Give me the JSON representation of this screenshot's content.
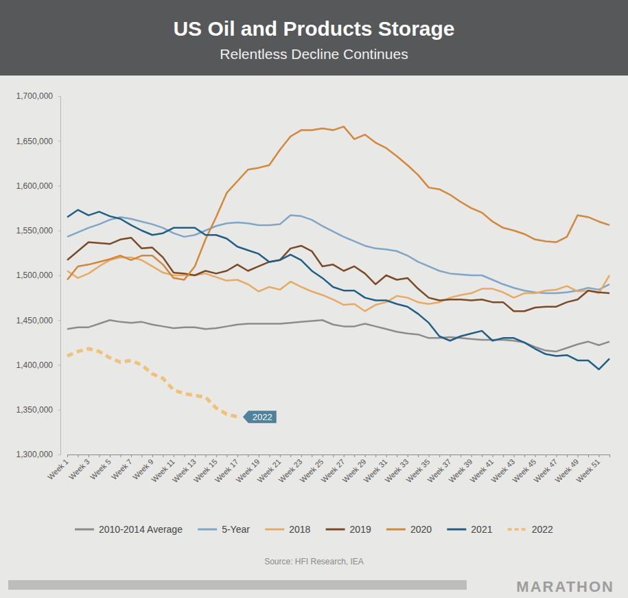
{
  "chart_data": {
    "type": "line",
    "title": "US Oil and Products Storage",
    "subtitle": "Relentless Decline Continues",
    "source": "Source: HFI Research, IEA",
    "footer": "MARATHON",
    "annotations": [
      "2022"
    ],
    "categories": [
      "Week 1",
      null,
      "Week 3",
      null,
      "Week 5",
      null,
      "Week 7",
      null,
      "Week 9",
      null,
      "Week 11",
      null,
      "Week 13",
      null,
      "Week 15",
      null,
      "Week 17",
      null,
      "Week 19",
      null,
      "Week 21",
      null,
      "Week 23",
      null,
      "Week 25",
      null,
      "Week 27",
      null,
      "Week 29",
      null,
      "Week 31",
      null,
      "Week 33",
      null,
      "Week 35",
      null,
      "Week 37",
      null,
      "Week 39",
      null,
      "Week 41",
      null,
      "Week 43",
      null,
      "Week 45",
      null,
      "Week 47",
      null,
      "Week 49",
      null,
      "Week 51",
      null
    ],
    "ylim": [
      1300000,
      1700000
    ],
    "yticks": [
      {
        "value": 1300000,
        "label": "1,300,000"
      },
      {
        "value": 1350000,
        "label": "1,350,000"
      },
      {
        "value": 1400000,
        "label": "1,400,000"
      },
      {
        "value": 1450000,
        "label": "1,450,000"
      },
      {
        "value": 1500000,
        "label": "1,500,000"
      },
      {
        "value": 1550000,
        "label": "1,550,000"
      },
      {
        "value": 1600000,
        "label": "1,600,000"
      },
      {
        "value": 1650000,
        "label": "1,650,000"
      },
      {
        "value": 1700000,
        "label": "1,700,000"
      }
    ],
    "grid": false,
    "legend": "bottom",
    "series": [
      {
        "name": "2010-2014 Average",
        "color": "#8c8c8c",
        "values": [
          1440000,
          1442000,
          1442000,
          1446000,
          1450000,
          1448000,
          1447000,
          1448000,
          1445000,
          1443000,
          1441000,
          1442000,
          1442000,
          1440000,
          1441000,
          1443000,
          1445000,
          1446000,
          1446000,
          1446000,
          1446000,
          1447000,
          1448000,
          1449000,
          1450000,
          1445000,
          1443000,
          1443000,
          1446000,
          1443000,
          1440000,
          1437000,
          1435000,
          1434000,
          1430000,
          1430000,
          1431000,
          1430000,
          1429000,
          1428000,
          1428000,
          1428000,
          1427000,
          1425000,
          1420000,
          1416000,
          1415000,
          1419000,
          1423000,
          1426000,
          1422000,
          1426000
        ]
      },
      {
        "name": "5-Year",
        "color": "#7fa6c6",
        "values": [
          1543000,
          1548000,
          1553000,
          1557000,
          1562000,
          1565000,
          1563000,
          1560000,
          1557000,
          1553000,
          1547000,
          1543000,
          1545000,
          1550000,
          1555000,
          1558000,
          1559000,
          1558000,
          1556000,
          1556000,
          1557000,
          1567000,
          1566000,
          1562000,
          1555000,
          1549000,
          1543000,
          1538000,
          1533000,
          1530000,
          1529000,
          1527000,
          1522000,
          1515000,
          1510000,
          1505000,
          1502000,
          1501000,
          1500000,
          1500000,
          1495000,
          1490000,
          1486000,
          1483000,
          1481000,
          1480000,
          1480000,
          1481000,
          1483000,
          1486000,
          1484000,
          1490000
        ]
      },
      {
        "name": "2018",
        "color": "#e8aa62",
        "values": [
          1505000,
          1497000,
          1502000,
          1510000,
          1517000,
          1520000,
          1520000,
          1517000,
          1510000,
          1503000,
          1500000,
          1500000,
          1500000,
          1502000,
          1498000,
          1494000,
          1495000,
          1490000,
          1482000,
          1487000,
          1484000,
          1493000,
          1487000,
          1482000,
          1478000,
          1473000,
          1467000,
          1468000,
          1460000,
          1467000,
          1470000,
          1477000,
          1475000,
          1470000,
          1468000,
          1470000,
          1475000,
          1478000,
          1480000,
          1485000,
          1485000,
          1481000,
          1475000,
          1480000,
          1480000,
          1483000,
          1484000,
          1488000,
          1482000,
          1483000,
          1480000,
          1500000
        ]
      },
      {
        "name": "2019",
        "color": "#7a4a26",
        "values": [
          1517000,
          1527000,
          1537000,
          1536000,
          1535000,
          1540000,
          1542000,
          1530000,
          1531000,
          1520000,
          1503000,
          1502000,
          1500000,
          1505000,
          1502000,
          1505000,
          1512000,
          1505000,
          1510000,
          1515000,
          1517000,
          1530000,
          1533000,
          1527000,
          1510000,
          1512000,
          1505000,
          1510000,
          1502000,
          1490000,
          1500000,
          1495000,
          1497000,
          1485000,
          1475000,
          1472000,
          1473000,
          1473000,
          1472000,
          1473000,
          1470000,
          1470000,
          1460000,
          1460000,
          1464000,
          1465000,
          1465000,
          1470000,
          1473000,
          1483000,
          1481000,
          1480000
        ]
      },
      {
        "name": "2020",
        "color": "#d2873b",
        "values": [
          1495000,
          1510000,
          1512000,
          1515000,
          1518000,
          1522000,
          1517000,
          1522000,
          1522000,
          1512000,
          1497000,
          1495000,
          1510000,
          1540000,
          1565000,
          1592000,
          1605000,
          1618000,
          1620000,
          1623000,
          1640000,
          1655000,
          1662000,
          1662000,
          1664000,
          1662000,
          1666000,
          1652000,
          1657000,
          1648000,
          1642000,
          1633000,
          1623000,
          1612000,
          1598000,
          1596000,
          1590000,
          1582000,
          1575000,
          1570000,
          1560000,
          1553000,
          1550000,
          1546000,
          1540000,
          1538000,
          1537000,
          1543000,
          1567000,
          1565000,
          1560000,
          1556000
        ]
      },
      {
        "name": "2021",
        "color": "#1f5f86",
        "values": [
          1565000,
          1573000,
          1567000,
          1571000,
          1566000,
          1563000,
          1556000,
          1550000,
          1545000,
          1547000,
          1553000,
          1553000,
          1553000,
          1545000,
          1545000,
          1541000,
          1532000,
          1528000,
          1524000,
          1515000,
          1517000,
          1523000,
          1517000,
          1505000,
          1497000,
          1487000,
          1483000,
          1483000,
          1475000,
          1472000,
          1472000,
          1468000,
          1465000,
          1457000,
          1447000,
          1432000,
          1427000,
          1432000,
          1435000,
          1438000,
          1427000,
          1430000,
          1430000,
          1425000,
          1418000,
          1412000,
          1410000,
          1411000,
          1405000,
          1405000,
          1395000,
          1407000
        ]
      },
      {
        "name": "2022",
        "color": "#efc27a",
        "line_style": "dashed",
        "values": [
          1410000,
          1415000,
          1418000,
          1415000,
          1408000,
          1403000,
          1405000,
          1400000,
          1390000,
          1385000,
          1372000,
          1368000,
          1366000,
          1364000,
          1352000,
          1345000,
          1342000,
          null,
          null,
          null,
          null,
          null,
          null,
          null,
          null,
          null,
          null,
          null,
          null,
          null,
          null,
          null,
          null,
          null,
          null,
          null,
          null,
          null,
          null,
          null,
          null,
          null,
          null,
          null,
          null,
          null,
          null,
          null,
          null,
          null,
          null,
          null
        ]
      }
    ]
  }
}
